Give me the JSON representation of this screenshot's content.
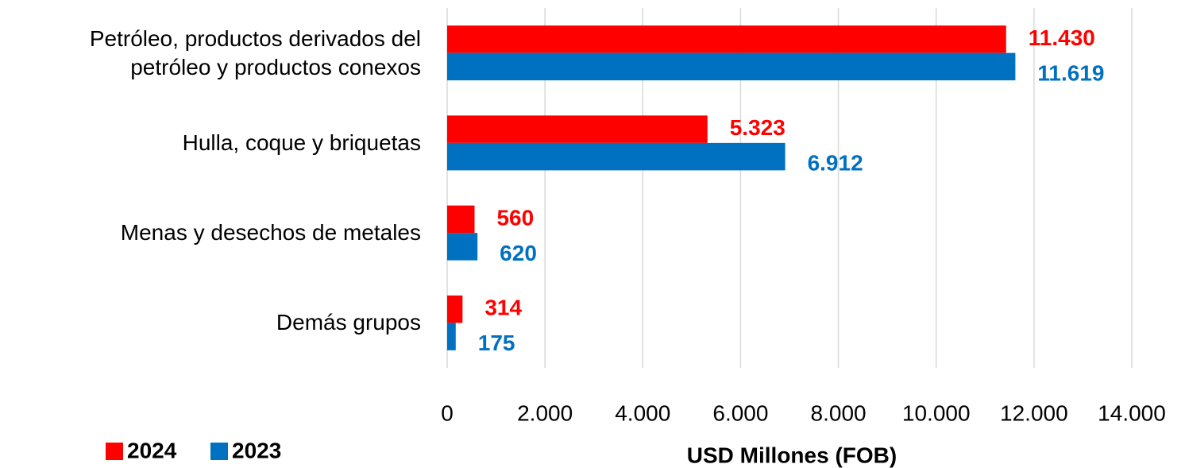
{
  "chart_data": {
    "type": "barh",
    "categories": [
      "Petróleo, productos derivados del petróleo y productos conexos",
      "Hulla, coque y briquetas",
      "Menas y desechos de metales",
      "Demás grupos"
    ],
    "series": [
      {
        "name": "2024",
        "color": "#ff0000",
        "values": [
          11430,
          5323,
          560,
          314
        ],
        "value_labels": [
          "11.430",
          "5.323",
          "560",
          "314"
        ]
      },
      {
        "name": "2023",
        "color": "#0070c0",
        "values": [
          11619,
          6912,
          620,
          175
        ],
        "value_labels": [
          "11.619",
          "6.912",
          "620",
          "175"
        ]
      }
    ],
    "xlabel": "USD Millones (FOB)",
    "xlim": [
      0,
      14000
    ],
    "xticks": [
      0,
      {
        "value": 2000,
        "label": "2.000"
      },
      {
        "value": 4000,
        "label": "4.000"
      },
      {
        "value": 6000,
        "label": "6.000"
      },
      {
        "value": 8000,
        "label": "8.000"
      },
      {
        "value": 10000,
        "label": "10.000"
      },
      {
        "value": 12000,
        "label": "12.000"
      },
      {
        "value": 14000,
        "label": "14.000"
      }
    ],
    "grid": true,
    "legend": "bottom-left"
  }
}
